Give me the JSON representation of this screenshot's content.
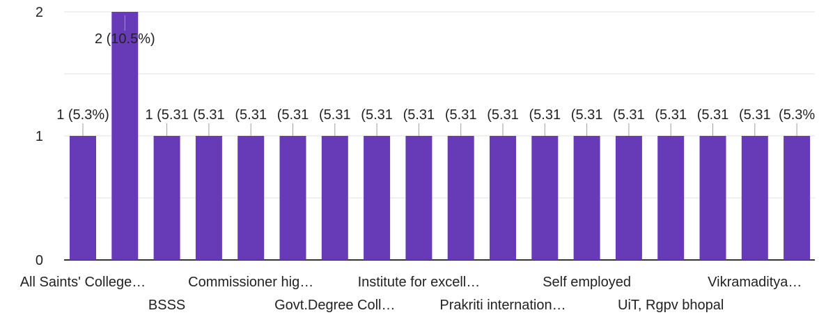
{
  "chart_data": {
    "type": "bar",
    "title": "",
    "xlabel": "",
    "ylabel": "",
    "ylim": [
      0,
      2
    ],
    "yticks": [
      "0",
      "1",
      "2"
    ],
    "grid": true,
    "legend": "none",
    "bar_color": "#673ab7",
    "categories": [
      "All Saints' College…",
      "",
      "BSSS",
      "",
      "Commissioner hig…",
      "",
      "Govt.Degree Coll…",
      "",
      "Institute for excell…",
      "",
      "Prakriti internation…",
      "",
      "Self employed",
      "",
      "UiT, Rgpv bhopal",
      "",
      "Vikramaditya…",
      ""
    ],
    "values": [
      1,
      2,
      1,
      1,
      1,
      1,
      1,
      1,
      1,
      1,
      1,
      1,
      1,
      1,
      1,
      1,
      1,
      1
    ],
    "data_labels": [
      "1 (5.3%)",
      "2 (10.5%)",
      "1 (5.31",
      "(5.31",
      "(5.31",
      "(5.31",
      "(5.31",
      "(5.31",
      "(5.31",
      "(5.31",
      "(5.31",
      "(5.31",
      "(5.31",
      "(5.31",
      "(5.31",
      "(5.31",
      "(5.31",
      "(5.3%"
    ]
  }
}
